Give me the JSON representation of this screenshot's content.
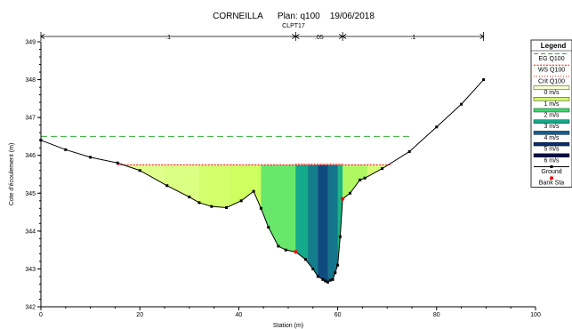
{
  "chart_data": {
    "type": "area",
    "title": "CORNEILLA      Plan: q100    19/06/2018",
    "subtitle": "CLPT17",
    "xlabel": "Station (m)",
    "ylabel": "Cote d'écoulement (m)",
    "xlim": [
      0,
      100
    ],
    "ylim": [
      342,
      349
    ],
    "x_ticks": [
      0,
      20,
      40,
      60,
      80,
      100
    ],
    "y_ticks": [
      342,
      343,
      344,
      345,
      346,
      347,
      348,
      349
    ],
    "grid": false,
    "legend_position": "right",
    "reach_lengths": [
      {
        "from": 0,
        "to": 51.5,
        "label": ".1"
      },
      {
        "from": 51.5,
        "to": 61,
        "label": ".05"
      },
      {
        "from": 61,
        "to": 89.5,
        "label": ".1"
      }
    ],
    "water_surface": {
      "name": "WS Q100",
      "elevation": 345.75,
      "x_start": 15.5,
      "x_end": 71
    },
    "energy_grade": {
      "name": "EG Q100",
      "elevation": 346.5,
      "x_start": 0,
      "x_end": 74.5
    },
    "crit_depth": {
      "name": "Crit Q100",
      "elevation": 345.78,
      "x_start": 51.5,
      "x_end": 61
    },
    "ground": {
      "name": "Ground",
      "x": [
        0,
        5,
        10,
        15.5,
        20,
        25.5,
        30,
        32,
        34.5,
        37.5,
        40.5,
        43,
        44.5,
        46,
        48,
        49.5,
        51.5,
        53.5,
        55,
        56,
        57,
        57.5,
        58,
        58.5,
        59,
        59.5,
        60,
        60.5,
        61,
        62.5,
        64.5,
        65.5,
        69,
        74.5,
        80,
        85,
        89.5
      ],
      "y": [
        346.4,
        346.15,
        345.95,
        345.8,
        345.6,
        345.2,
        344.9,
        344.75,
        344.65,
        344.62,
        344.8,
        345.05,
        344.6,
        344.1,
        343.6,
        343.5,
        343.45,
        343.25,
        343.0,
        342.8,
        342.72,
        342.68,
        342.65,
        342.7,
        342.72,
        342.9,
        343.1,
        343.85,
        344.85,
        345.0,
        345.35,
        345.4,
        345.65,
        346.1,
        346.75,
        347.35,
        348.0
      ]
    },
    "bank_stations": {
      "name": "Bank Sta",
      "x": [
        51.5,
        61
      ],
      "y": [
        343.45,
        344.85
      ]
    },
    "velocity_legend": [
      "0 m/s",
      "1 m/s",
      "2 m/s",
      "3 m/s",
      "4 m/s",
      "5 m/s",
      "6 m/s"
    ],
    "velocity_bands": [
      {
        "x0": 15.5,
        "x1": 25,
        "v": 0.6
      },
      {
        "x0": 25,
        "x1": 32,
        "v": 0.7
      },
      {
        "x0": 32,
        "x1": 38.5,
        "v": 0.9
      },
      {
        "x0": 38.5,
        "x1": 44.5,
        "v": 1.0
      },
      {
        "x0": 44.5,
        "x1": 51.5,
        "v": 1.7
      },
      {
        "x0": 51.5,
        "x1": 54,
        "v": 3.0
      },
      {
        "x0": 54,
        "x1": 56,
        "v": 3.6
      },
      {
        "x0": 56,
        "x1": 58,
        "v": 4.4
      },
      {
        "x0": 58,
        "x1": 60,
        "v": 3.7
      },
      {
        "x0": 60,
        "x1": 61,
        "v": 2.8
      },
      {
        "x0": 61,
        "x1": 66,
        "v": 1.2
      },
      {
        "x0": 66,
        "x1": 71,
        "v": 0.8
      }
    ],
    "colors": {
      "energy_grade": "#33aa33",
      "water_surface": "#ff0000",
      "crit_depth": "#cc2200",
      "ground": "#000000",
      "bank_station": "#ff0000"
    }
  },
  "legend": {
    "title": "Legend",
    "items": [
      "EG Q100",
      "WS Q100",
      "Crit Q100",
      "0 m/s",
      "1 m/s",
      "2 m/s",
      "3 m/s",
      "4 m/s",
      "5 m/s",
      "6 m/s",
      "Ground",
      "Bank Sta"
    ]
  }
}
